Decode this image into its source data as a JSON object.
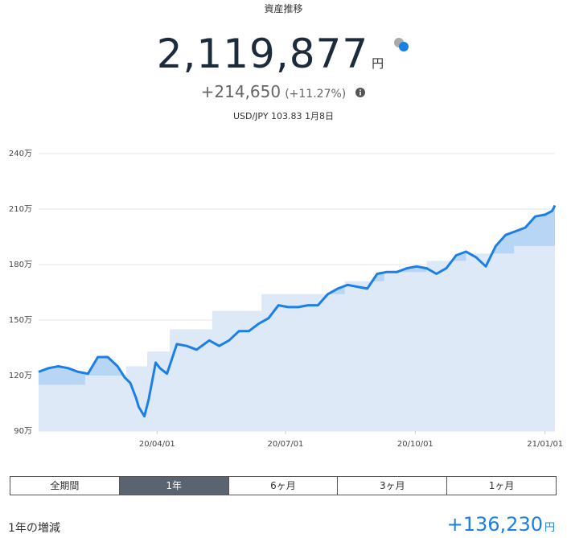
{
  "header": {
    "title": "資産推移",
    "total": "2,119,877",
    "unit": "円",
    "change": "+214,650",
    "change_pct": "(+11.27%)",
    "fx": "USD/JPY 103.83 1月8日"
  },
  "chart_data": {
    "type": "line",
    "xlim": [
      "20/01/08",
      "21/01/08"
    ],
    "xticks": [
      "20/04/01",
      "20/07/01",
      "20/10/01",
      "21/01/01"
    ],
    "ylim": [
      90,
      240
    ],
    "yticks": [
      {
        "value": 90,
        "label": "90万"
      },
      {
        "value": 120,
        "label": "120万"
      },
      {
        "value": 150,
        "label": "150万"
      },
      {
        "value": 180,
        "label": "180万"
      },
      {
        "value": 210,
        "label": "210万"
      },
      {
        "value": 240,
        "label": "240万"
      }
    ],
    "grid": true,
    "gain_fill": "#b7d6f6",
    "series": [
      {
        "color": "#1a7fe6",
        "x": [
          "20/01/08",
          "20/01/15",
          "20/01/22",
          "20/01/29",
          "20/02/05",
          "20/02/12",
          "20/02/19",
          "20/02/26",
          "20/03/04",
          "20/03/09",
          "20/03/13",
          "20/03/17",
          "20/03/19",
          "20/03/23",
          "20/03/26",
          "20/03/31",
          "20/04/03",
          "20/04/08",
          "20/04/15",
          "20/04/22",
          "20/04/29",
          "20/05/08",
          "20/05/15",
          "20/05/22",
          "20/05/29",
          "20/06/05",
          "20/06/12",
          "20/06/19",
          "20/06/26",
          "20/07/03",
          "20/07/10",
          "20/07/17",
          "20/07/24",
          "20/07/31",
          "20/08/07",
          "20/08/14",
          "20/08/21",
          "20/08/28",
          "20/09/04",
          "20/09/11",
          "20/09/18",
          "20/09/25",
          "20/10/02",
          "20/10/09",
          "20/10/16",
          "20/10/23",
          "20/10/30",
          "20/11/06",
          "20/11/13",
          "20/11/20",
          "20/11/27",
          "20/12/04",
          "20/12/11",
          "20/12/18",
          "20/12/25",
          "21/01/01",
          "21/01/06",
          "21/01/08"
        ],
        "values": [
          122,
          124,
          125,
          124,
          122,
          121,
          130,
          130,
          125,
          119,
          116,
          108,
          103,
          98,
          107,
          127,
          124,
          121,
          137,
          136,
          134,
          139,
          136,
          139,
          144,
          144,
          148,
          151,
          158,
          157,
          157,
          158,
          158,
          164,
          167,
          169,
          168,
          167,
          175,
          176,
          176,
          178,
          179,
          178,
          175,
          178,
          185,
          187,
          184,
          179,
          190,
          196,
          198,
          200,
          206,
          207,
          209,
          212
        ]
      },
      {
        "color": "#dde9f6",
        "step": true,
        "x": [
          "20/01/08",
          "20/02/10",
          "20/03/10",
          "20/03/25",
          "20/04/10",
          "20/05/10",
          "20/06/14",
          "20/08/12",
          "20/09/09",
          "20/10/09",
          "20/11/06",
          "20/12/10"
        ],
        "values": [
          115,
          120,
          125,
          133,
          145,
          155,
          164,
          171,
          176,
          182,
          186,
          190
        ]
      }
    ]
  },
  "tabs": [
    "全期間",
    "1年",
    "6ヶ月",
    "3ヶ月",
    "1ヶ月"
  ],
  "selected_tab": 1,
  "summary": {
    "label": "1年の増減",
    "value": "+136,230",
    "unit": "円"
  }
}
